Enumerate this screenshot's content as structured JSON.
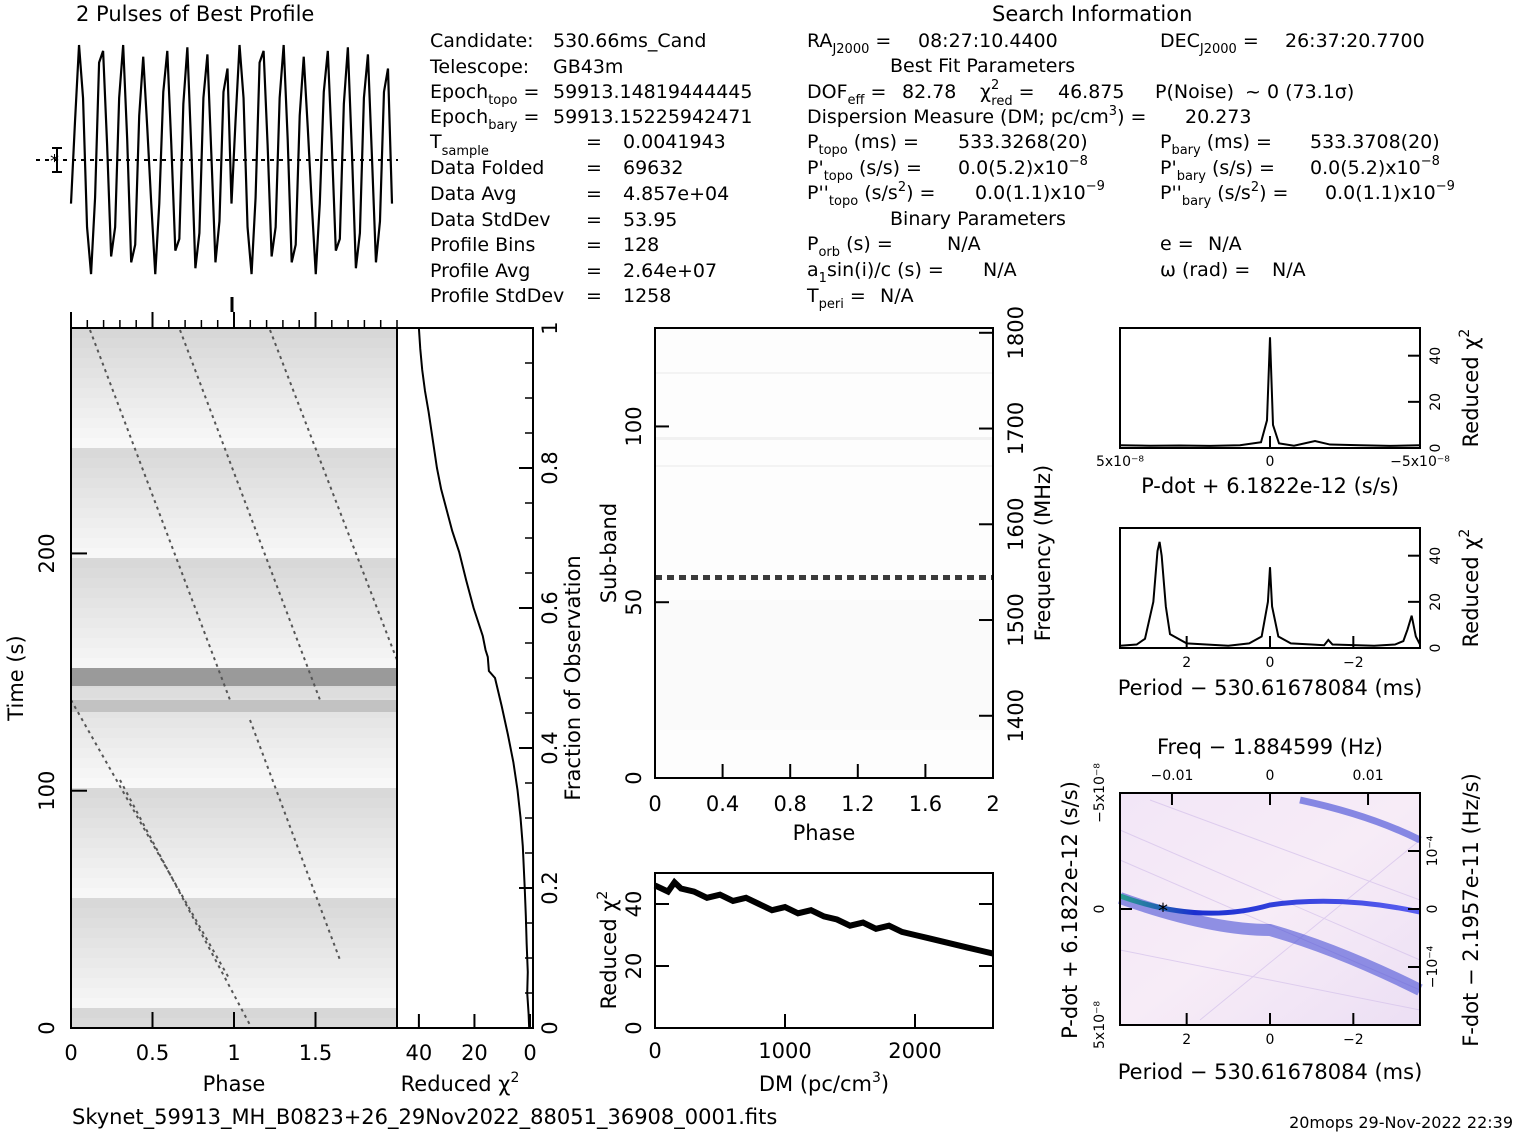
{
  "footer": {
    "filename": "Skynet_59913_MH_B0823+26_29Nov2022_88051_36908_0001.fits",
    "stamp": "20mops 29-Nov-2022 22:39"
  },
  "info": {
    "search_title": "Search Information",
    "best_fit_title": "Best Fit Parameters",
    "binary_title": "Binary Parameters",
    "candidate": "530.66ms_Cand",
    "telescope": "GB43m",
    "epoch_topo": "59913.14819444445",
    "epoch_bary": "59913.15225942471",
    "t_sample": "0.0041943",
    "data_folded": "69632",
    "data_avg": "4.857e+04",
    "data_stddev": "53.95",
    "profile_bins": "128",
    "profile_avg": "2.64e+07",
    "profile_stddev": "1258",
    "ra": "08:27:10.4400",
    "dec": "26:37:20.7700",
    "dof_eff": "82.78",
    "chi2_red": "46.875",
    "p_noise": "~ 0   (73.1σ)",
    "dm": "20.273",
    "p_topo": "533.3268(20)",
    "p_bary": "533.3708(20)",
    "pdot_topo": "0.0(5.2)x10",
    "pdot_bary": "0.0(5.2)x10",
    "pddot_topo": "0.0(1.1)x10",
    "pddot_bary": "0.0(1.1)x10",
    "p_orb": "N/A",
    "e": "N/A",
    "a1sini": "N/A",
    "omega": "N/A",
    "t_peri": "N/A"
  },
  "chart_data": [
    {
      "id": "profile",
      "type": "line",
      "title": "2 Pulses of Best Profile",
      "x": [
        0.0,
        0.025,
        0.05,
        0.075,
        0.1,
        0.125,
        0.15,
        0.175,
        0.2,
        0.225,
        0.25,
        0.275,
        0.3,
        0.325,
        0.35,
        0.375,
        0.4,
        0.425,
        0.45,
        0.475,
        0.5,
        0.525,
        0.55,
        0.575,
        0.6,
        0.625,
        0.65,
        0.675,
        0.7,
        0.725,
        0.75,
        0.775,
        0.8,
        0.825,
        0.85,
        0.875,
        0.9,
        0.925,
        0.95,
        0.975,
        1.0,
        1.025,
        1.05,
        1.075,
        1.1,
        1.125,
        1.15,
        1.175,
        1.2,
        1.225,
        1.25,
        1.275,
        1.3,
        1.325,
        1.35,
        1.375,
        1.4,
        1.425,
        1.45,
        1.475,
        1.5,
        1.525,
        1.55,
        1.575,
        1.6,
        1.625,
        1.65,
        1.675,
        1.7,
        1.725,
        1.75,
        1.775,
        1.8,
        1.825,
        1.85,
        1.875,
        1.9,
        1.925,
        1.95,
        1.975,
        2.0
      ],
      "values": [
        -0.35,
        0.35,
        1.0,
        0.55,
        -0.55,
        -0.95,
        -0.3,
        0.85,
        0.95,
        0.15,
        -0.8,
        -0.55,
        0.55,
        1.0,
        0.2,
        -0.85,
        -0.7,
        0.4,
        0.9,
        0.3,
        -0.35,
        -0.95,
        -0.35,
        0.6,
        0.95,
        0.15,
        -0.75,
        -0.65,
        0.5,
        0.98,
        0.1,
        -0.9,
        -0.6,
        0.55,
        0.92,
        0.05,
        -0.85,
        -0.5,
        0.6,
        0.8,
        -0.35,
        0.35,
        1.0,
        0.55,
        -0.55,
        -0.95,
        -0.3,
        0.85,
        0.95,
        0.15,
        -0.8,
        -0.55,
        0.55,
        1.0,
        0.2,
        -0.85,
        -0.7,
        0.4,
        0.9,
        0.3,
        -0.35,
        -0.95,
        -0.35,
        0.6,
        0.95,
        0.15,
        -0.75,
        -0.65,
        0.5,
        0.98,
        0.1,
        -0.9,
        -0.6,
        0.55,
        0.92,
        0.05,
        -0.85,
        -0.5,
        0.6,
        0.8,
        -0.35
      ]
    },
    {
      "id": "time-phase",
      "type": "heatmap",
      "xlabel": "Phase",
      "ylabel": "Time (s)",
      "xlim": [
        0,
        2
      ],
      "ylim": [
        0,
        295
      ],
      "x_ticks": [
        "0",
        "0.5",
        "1",
        "1.5"
      ],
      "y_ticks": [
        "0",
        "100",
        "200"
      ]
    },
    {
      "id": "fraction-chi2",
      "type": "line",
      "xlabel": "Reduced χ²",
      "ylabel": "Fraction of Observation",
      "x_ticks": [
        "40",
        "20",
        "0"
      ],
      "y_ticks": [
        "0",
        "0.2",
        "0.4",
        "0.6",
        "0.8",
        "1"
      ],
      "x": [
        0.3,
        0.5,
        1.0,
        0.8,
        1.2,
        1.5,
        1.9,
        2.6,
        3.4,
        4.5,
        6.0,
        8.0,
        10.2,
        12.6,
        14.8,
        15.2,
        16.0,
        17.0,
        20.3,
        23.0,
        25.5,
        28.0,
        30.0,
        32.0,
        33.5,
        35.0,
        36.5,
        37.8,
        38.8,
        39.5,
        40.0
      ],
      "y": [
        0.0,
        0.02,
        0.05,
        0.08,
        0.12,
        0.16,
        0.2,
        0.26,
        0.3,
        0.34,
        0.38,
        0.42,
        0.46,
        0.5,
        0.51,
        0.53,
        0.54,
        0.56,
        0.6,
        0.64,
        0.68,
        0.71,
        0.74,
        0.77,
        0.8,
        0.84,
        0.88,
        0.91,
        0.94,
        0.97,
        1.0
      ]
    },
    {
      "id": "subband-phase",
      "type": "heatmap",
      "xlabel": "Phase",
      "ylabel": "Sub-band",
      "y2label": "Frequency (MHz)",
      "xlim": [
        0,
        2
      ],
      "ylim": [
        0,
        128
      ],
      "x_ticks": [
        "0",
        "0.4",
        "0.8",
        "1.2",
        "1.6",
        "2"
      ],
      "y_ticks": [
        "0",
        "50",
        "100"
      ],
      "y2_ticks": [
        "1400",
        "1500",
        "1600",
        "1700",
        "1800"
      ]
    },
    {
      "id": "dm-chi2",
      "type": "line",
      "xlabel": "DM (pc/cm³)",
      "ylabel": "Reduced χ²",
      "xlim": [
        0,
        2600
      ],
      "ylim": [
        0,
        50
      ],
      "x_ticks": [
        "0",
        "1000",
        "2000"
      ],
      "y_ticks": [
        "0",
        "20",
        "40"
      ],
      "x": [
        0,
        100,
        150,
        200,
        300,
        400,
        500,
        600,
        700,
        800,
        900,
        1000,
        1100,
        1200,
        1300,
        1400,
        1500,
        1600,
        1700,
        1800,
        1900,
        2000,
        2100,
        2200,
        2300,
        2400,
        2500,
        2600
      ],
      "y": [
        46,
        44,
        47,
        45,
        44,
        42,
        43,
        41,
        42,
        40,
        38,
        39,
        37,
        38,
        36,
        35,
        33,
        34,
        32,
        33,
        31,
        30,
        29,
        28,
        27,
        26,
        25,
        24
      ]
    },
    {
      "id": "pdot-chi2",
      "type": "line",
      "xlabel": "P-dot + 6.1822e-12 (s/s)",
      "ylabel": "Reduced χ²",
      "xlim": [
        5e-08,
        -5e-08
      ],
      "x_ticks": [
        "5x10⁻⁸",
        "0",
        "−5x10⁻⁸"
      ],
      "y_ticks": [
        "0",
        "20",
        "40"
      ],
      "x": [
        5e-08,
        4e-08,
        3e-08,
        2e-08,
        1e-08,
        3e-09,
        1e-09,
        0,
        -1e-09,
        -3e-09,
        -8e-09,
        -1.5e-08,
        -2e-08,
        -3e-08,
        -4e-08,
        -5e-08
      ],
      "y": [
        1.2,
        1.0,
        1.1,
        0.9,
        1.2,
        2.5,
        12,
        48,
        10,
        2.0,
        1.0,
        3.0,
        1.5,
        1.2,
        0.9,
        1.2
      ]
    },
    {
      "id": "period-chi2",
      "type": "line",
      "xlabel": "Period − 530.61678084 (ms)",
      "ylabel": "Reduced χ²",
      "xlim": [
        3.6,
        -3.6
      ],
      "x_ticks": [
        "2",
        "0",
        "−2"
      ],
      "y_ticks": [
        "0",
        "20",
        "40"
      ],
      "x": [
        3.6,
        3.2,
        3.0,
        2.8,
        2.7,
        2.65,
        2.6,
        2.5,
        2.4,
        2.0,
        1.0,
        0.5,
        0.2,
        0.05,
        0,
        -0.05,
        -0.2,
        -0.5,
        -1.0,
        -1.3,
        -1.4,
        -1.5,
        -2.5,
        -3.0,
        -3.2,
        -3.3,
        -3.4,
        -3.5,
        -3.6
      ],
      "y": [
        1.0,
        1.5,
        4,
        20,
        42,
        46,
        40,
        18,
        6,
        2,
        1,
        2,
        5,
        20,
        35,
        18,
        5,
        2,
        1.5,
        1.2,
        3.5,
        1.5,
        1.0,
        1.5,
        3,
        8,
        14,
        5,
        1.5
      ]
    },
    {
      "id": "ppdot-plane",
      "type": "heatmap",
      "top_label": "Freq − 1.884599 (Hz)",
      "xlabel": "Period − 530.61678084 (ms)",
      "ylabel": "P-dot + 6.1822e-12 (s/s)",
      "y2label": "F-dot − 2.1957e-11 (Hz/s)",
      "x_ticks": [
        "2",
        "0",
        "−2"
      ],
      "top_ticks": [
        "−0.01",
        "0",
        "0.01"
      ],
      "y_ticks": [
        "5x10⁻⁸",
        "0",
        "−5x10⁻⁸"
      ],
      "y2_ticks": [
        "−10⁻⁴",
        "0",
        "10⁻⁴"
      ]
    }
  ]
}
